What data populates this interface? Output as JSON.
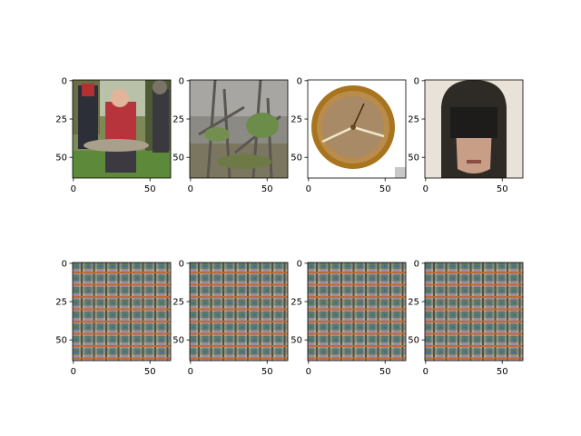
{
  "chart_data": {
    "type": "image-grid",
    "rows": 2,
    "cols": 4,
    "panels": [
      {
        "content": "person holding a large fish outdoors",
        "xlim": [
          0,
          64
        ],
        "ylim": [
          64,
          0
        ],
        "xticks": [
          "0",
          "50"
        ],
        "yticks": [
          "0",
          "25",
          "50"
        ]
      },
      {
        "content": "forest undergrowth with bare trees",
        "xlim": [
          0,
          64
        ],
        "ylim": [
          64,
          0
        ],
        "xticks": [
          "0",
          "50"
        ],
        "yticks": [
          "0",
          "25",
          "50"
        ]
      },
      {
        "content": "round brass barometer gauge",
        "xlim": [
          0,
          64
        ],
        "ylim": [
          64,
          0
        ],
        "xticks": [
          "0",
          "50"
        ],
        "yticks": [
          "0",
          "25",
          "50"
        ]
      },
      {
        "content": "face with dark bangs covering the eyes",
        "xlim": [
          0,
          64
        ],
        "ylim": [
          64,
          0
        ],
        "xticks": [
          "0",
          "50"
        ],
        "yticks": [
          "0",
          "25",
          "50"
        ]
      },
      {
        "content": "checkerboard artifact pattern",
        "xlim": [
          0,
          64
        ],
        "ylim": [
          64,
          0
        ],
        "xticks": [
          "0",
          "50"
        ],
        "yticks": [
          "0",
          "25",
          "50"
        ]
      },
      {
        "content": "checkerboard artifact pattern",
        "xlim": [
          0,
          64
        ],
        "ylim": [
          64,
          0
        ],
        "xticks": [
          "0",
          "50"
        ],
        "yticks": [
          "0",
          "25",
          "50"
        ]
      },
      {
        "content": "checkerboard artifact pattern",
        "xlim": [
          0,
          64
        ],
        "ylim": [
          64,
          0
        ],
        "xticks": [
          "0",
          "50"
        ],
        "yticks": [
          "0",
          "25",
          "50"
        ]
      },
      {
        "content": "checkerboard artifact pattern",
        "xlim": [
          0,
          64
        ],
        "ylim": [
          64,
          0
        ],
        "xticks": [
          "0",
          "50"
        ],
        "yticks": [
          "0",
          "25",
          "50"
        ]
      }
    ]
  }
}
